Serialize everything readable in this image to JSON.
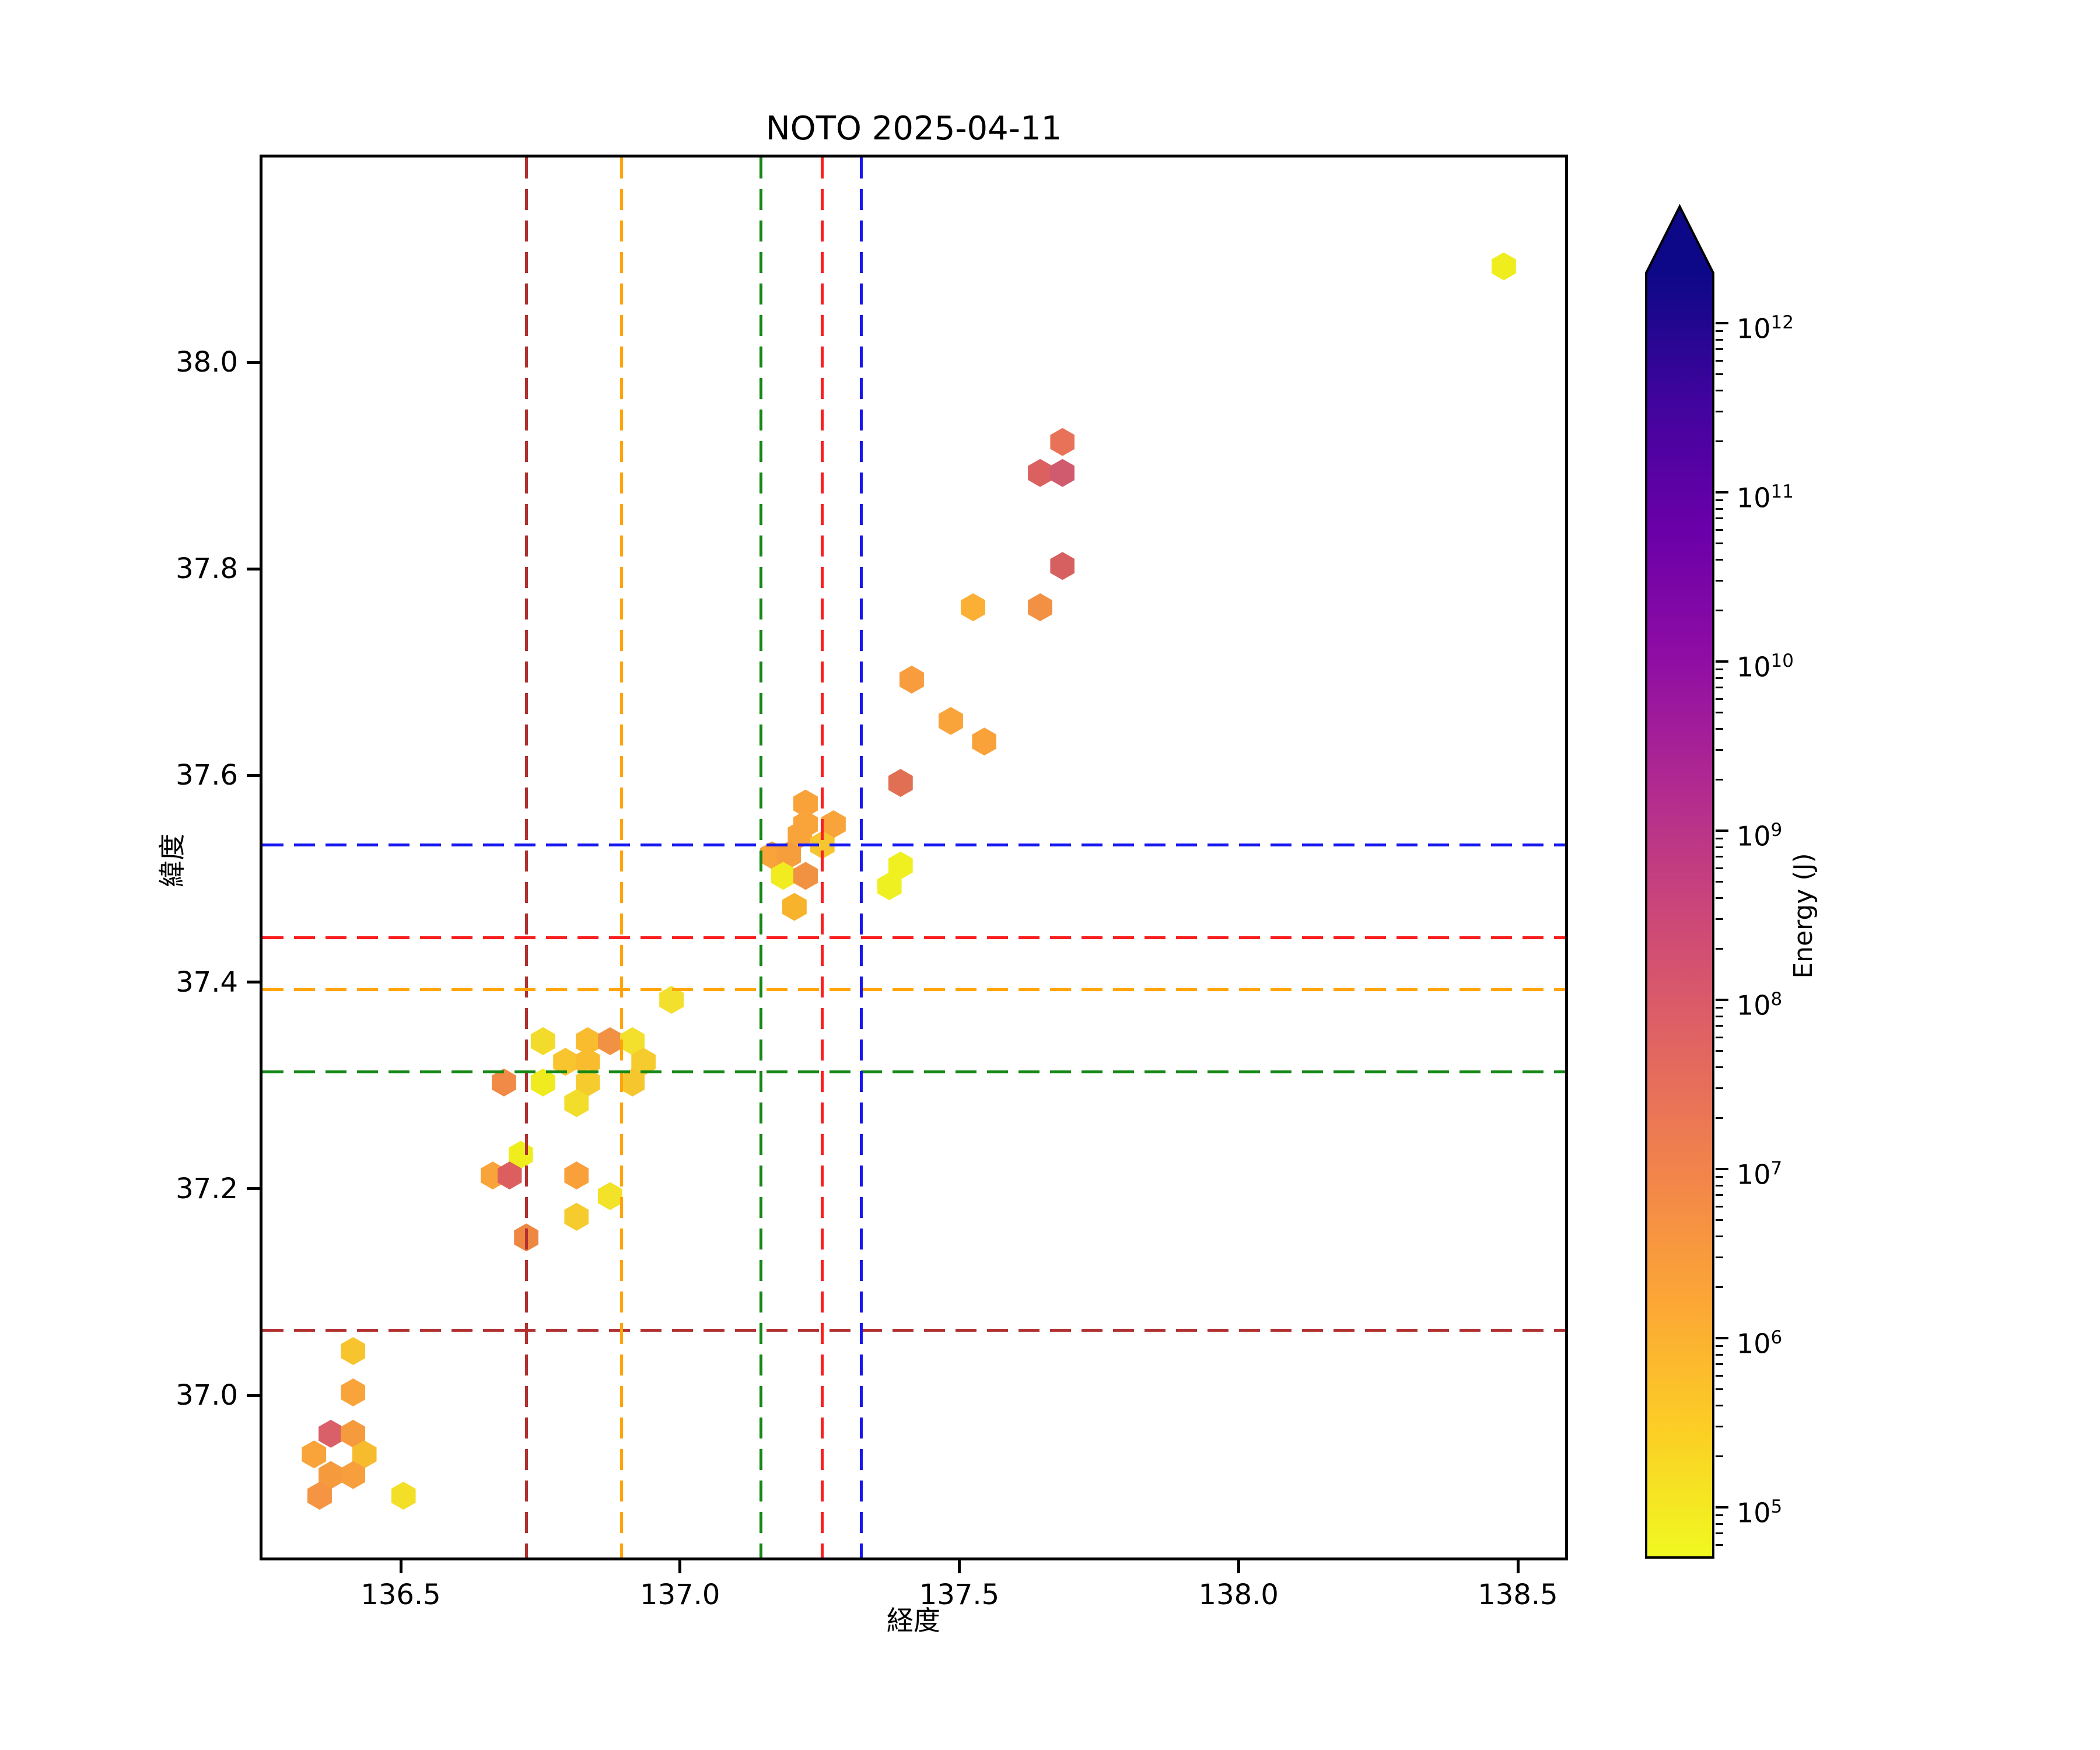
{
  "chart_data": {
    "type": "scatter",
    "title": "NOTO 2025-04-11",
    "xlabel": "経度",
    "ylabel": "緯度",
    "xlim": [
      136.25,
      138.59
    ],
    "ylim": [
      36.84,
      38.2
    ],
    "grid": false,
    "marker": "hexagon",
    "xticks": [
      136.5,
      137.0,
      137.5,
      138.0,
      138.5
    ],
    "yticks": [
      37.0,
      37.2,
      37.4,
      37.6,
      37.8,
      38.0
    ],
    "colorbar": {
      "label": "Energy (J)",
      "scale": "log",
      "tick_base": "10",
      "tick_exponents": [
        5,
        6,
        7,
        8,
        9,
        10,
        11,
        12
      ],
      "colormap": "plasma_r",
      "extend": "max",
      "range_exponents": [
        4.7,
        12.3
      ]
    },
    "crosshair_events": [
      {
        "name": "event-darkred",
        "color": "#B23232",
        "lon": 136.73,
        "lat": 37.06
      },
      {
        "name": "event-orange",
        "color": "#FFA50A",
        "lon": 136.9,
        "lat": 37.39
      },
      {
        "name": "event-green",
        "color": "#148714",
        "lon": 137.15,
        "lat": 37.31
      },
      {
        "name": "event-red",
        "color": "#FA1E1E",
        "lon": 137.26,
        "lat": 37.44
      },
      {
        "name": "event-blue",
        "color": "#1616F0",
        "lon": 137.33,
        "lat": 37.53
      }
    ],
    "points": [
      {
        "lon": 136.42,
        "lat": 37.04,
        "color": "#F7C42E",
        "energy_exp": 5.9
      },
      {
        "lon": 136.42,
        "lat": 37.0,
        "color": "#F9A43A",
        "energy_exp": 6.3
      },
      {
        "lon": 136.38,
        "lat": 36.96,
        "color": "#D95F69",
        "energy_exp": 7.9
      },
      {
        "lon": 136.42,
        "lat": 36.96,
        "color": "#F59B3E",
        "energy_exp": 6.5
      },
      {
        "lon": 136.35,
        "lat": 36.94,
        "color": "#F9A43A",
        "energy_exp": 6.3
      },
      {
        "lon": 136.44,
        "lat": 36.94,
        "color": "#F7BB2E",
        "energy_exp": 6.0
      },
      {
        "lon": 136.38,
        "lat": 36.92,
        "color": "#F59B3E",
        "energy_exp": 6.5
      },
      {
        "lon": 136.42,
        "lat": 36.92,
        "color": "#F79F3C",
        "energy_exp": 6.4
      },
      {
        "lon": 136.36,
        "lat": 36.9,
        "color": "#F59442",
        "energy_exp": 6.6
      },
      {
        "lon": 136.51,
        "lat": 36.9,
        "color": "#F2DF26",
        "energy_exp": 5.3
      },
      {
        "lon": 136.99,
        "lat": 37.38,
        "color": "#F2E02C",
        "energy_exp": 5.3
      },
      {
        "lon": 136.76,
        "lat": 37.34,
        "color": "#F3DB2B",
        "energy_exp": 5.4
      },
      {
        "lon": 136.84,
        "lat": 37.34,
        "color": "#F8BC2E",
        "energy_exp": 6.0
      },
      {
        "lon": 136.88,
        "lat": 37.34,
        "color": "#F19143",
        "energy_exp": 6.8
      },
      {
        "lon": 136.92,
        "lat": 37.34,
        "color": "#F2E02C",
        "energy_exp": 5.3
      },
      {
        "lon": 136.8,
        "lat": 37.32,
        "color": "#F8C52F",
        "energy_exp": 5.8
      },
      {
        "lon": 136.84,
        "lat": 37.32,
        "color": "#F8BC2E",
        "energy_exp": 6.0
      },
      {
        "lon": 136.94,
        "lat": 37.32,
        "color": "#F6CB2E",
        "energy_exp": 5.7
      },
      {
        "lon": 136.69,
        "lat": 37.3,
        "color": "#F08A46",
        "energy_exp": 6.9
      },
      {
        "lon": 136.76,
        "lat": 37.3,
        "color": "#F0EB1F",
        "energy_exp": 5.0
      },
      {
        "lon": 136.84,
        "lat": 37.3,
        "color": "#F6CB2E",
        "energy_exp": 5.7
      },
      {
        "lon": 136.92,
        "lat": 37.3,
        "color": "#F6C62E",
        "energy_exp": 5.8
      },
      {
        "lon": 136.82,
        "lat": 37.28,
        "color": "#F2DD2A",
        "energy_exp": 5.4
      },
      {
        "lon": 136.72,
        "lat": 37.23,
        "color": "#EFED1C",
        "energy_exp": 5.0
      },
      {
        "lon": 136.67,
        "lat": 37.21,
        "color": "#F9A43A",
        "energy_exp": 6.3
      },
      {
        "lon": 136.7,
        "lat": 37.21,
        "color": "#DC5E5E",
        "energy_exp": 7.6
      },
      {
        "lon": 136.82,
        "lat": 37.21,
        "color": "#F9A03B",
        "energy_exp": 6.4
      },
      {
        "lon": 136.88,
        "lat": 37.19,
        "color": "#F2E228",
        "energy_exp": 5.3
      },
      {
        "lon": 136.82,
        "lat": 37.17,
        "color": "#F6CB2E",
        "energy_exp": 5.7
      },
      {
        "lon": 136.73,
        "lat": 37.15,
        "color": "#EE8742",
        "energy_exp": 7.0
      },
      {
        "lon": 137.23,
        "lat": 37.57,
        "color": "#F9A23A",
        "energy_exp": 6.4
      },
      {
        "lon": 137.23,
        "lat": 37.55,
        "color": "#F9A43A",
        "energy_exp": 6.3
      },
      {
        "lon": 137.28,
        "lat": 37.55,
        "color": "#F9A43A",
        "energy_exp": 6.3
      },
      {
        "lon": 137.22,
        "lat": 37.54,
        "color": "#F9A43A",
        "energy_exp": 6.3
      },
      {
        "lon": 137.26,
        "lat": 37.53,
        "color": "#F7C52F",
        "energy_exp": 5.9
      },
      {
        "lon": 137.17,
        "lat": 37.52,
        "color": "#F9A43A",
        "energy_exp": 6.3
      },
      {
        "lon": 137.2,
        "lat": 37.52,
        "color": "#F79E3C",
        "energy_exp": 6.4
      },
      {
        "lon": 137.19,
        "lat": 37.5,
        "color": "#F1EC20",
        "energy_exp": 5.0
      },
      {
        "lon": 137.23,
        "lat": 37.5,
        "color": "#F19243",
        "energy_exp": 6.8
      },
      {
        "lon": 137.21,
        "lat": 37.47,
        "color": "#F8B32C",
        "energy_exp": 6.1
      },
      {
        "lon": 137.4,
        "lat": 37.59,
        "color": "#E06F54",
        "energy_exp": 7.3
      },
      {
        "lon": 137.4,
        "lat": 37.51,
        "color": "#F0F021",
        "energy_exp": 4.9
      },
      {
        "lon": 137.38,
        "lat": 37.49,
        "color": "#EFF021",
        "energy_exp": 4.9
      },
      {
        "lon": 137.42,
        "lat": 37.69,
        "color": "#F89C3D",
        "energy_exp": 6.5
      },
      {
        "lon": 137.49,
        "lat": 37.65,
        "color": "#F9A43A",
        "energy_exp": 6.3
      },
      {
        "lon": 137.55,
        "lat": 37.63,
        "color": "#F9A23A",
        "energy_exp": 6.4
      },
      {
        "lon": 137.53,
        "lat": 37.76,
        "color": "#FBAF34",
        "energy_exp": 6.1
      },
      {
        "lon": 137.65,
        "lat": 37.76,
        "color": "#F29143",
        "energy_exp": 6.8
      },
      {
        "lon": 137.69,
        "lat": 37.8,
        "color": "#D65F5F",
        "energy_exp": 7.8
      },
      {
        "lon": 137.65,
        "lat": 37.89,
        "color": "#DB6060",
        "energy_exp": 7.6
      },
      {
        "lon": 137.69,
        "lat": 37.89,
        "color": "#D05A6E",
        "energy_exp": 8.1
      },
      {
        "lon": 137.69,
        "lat": 37.92,
        "color": "#E87257",
        "energy_exp": 7.2
      },
      {
        "lon": 138.48,
        "lat": 38.09,
        "color": "#F0ED1E",
        "energy_exp": 5.0
      }
    ]
  },
  "layout_colors": {
    "background": "#ffffff",
    "spine": "#000000",
    "plasma_stops_low_to_high": [
      "#f0f921",
      "#fcce25",
      "#fca636",
      "#f2844b",
      "#e16462",
      "#cc4778",
      "#b12a90",
      "#8f0da4",
      "#6a00a8",
      "#41049d",
      "#0d0887"
    ],
    "extend_arrow": "#0d0887"
  }
}
